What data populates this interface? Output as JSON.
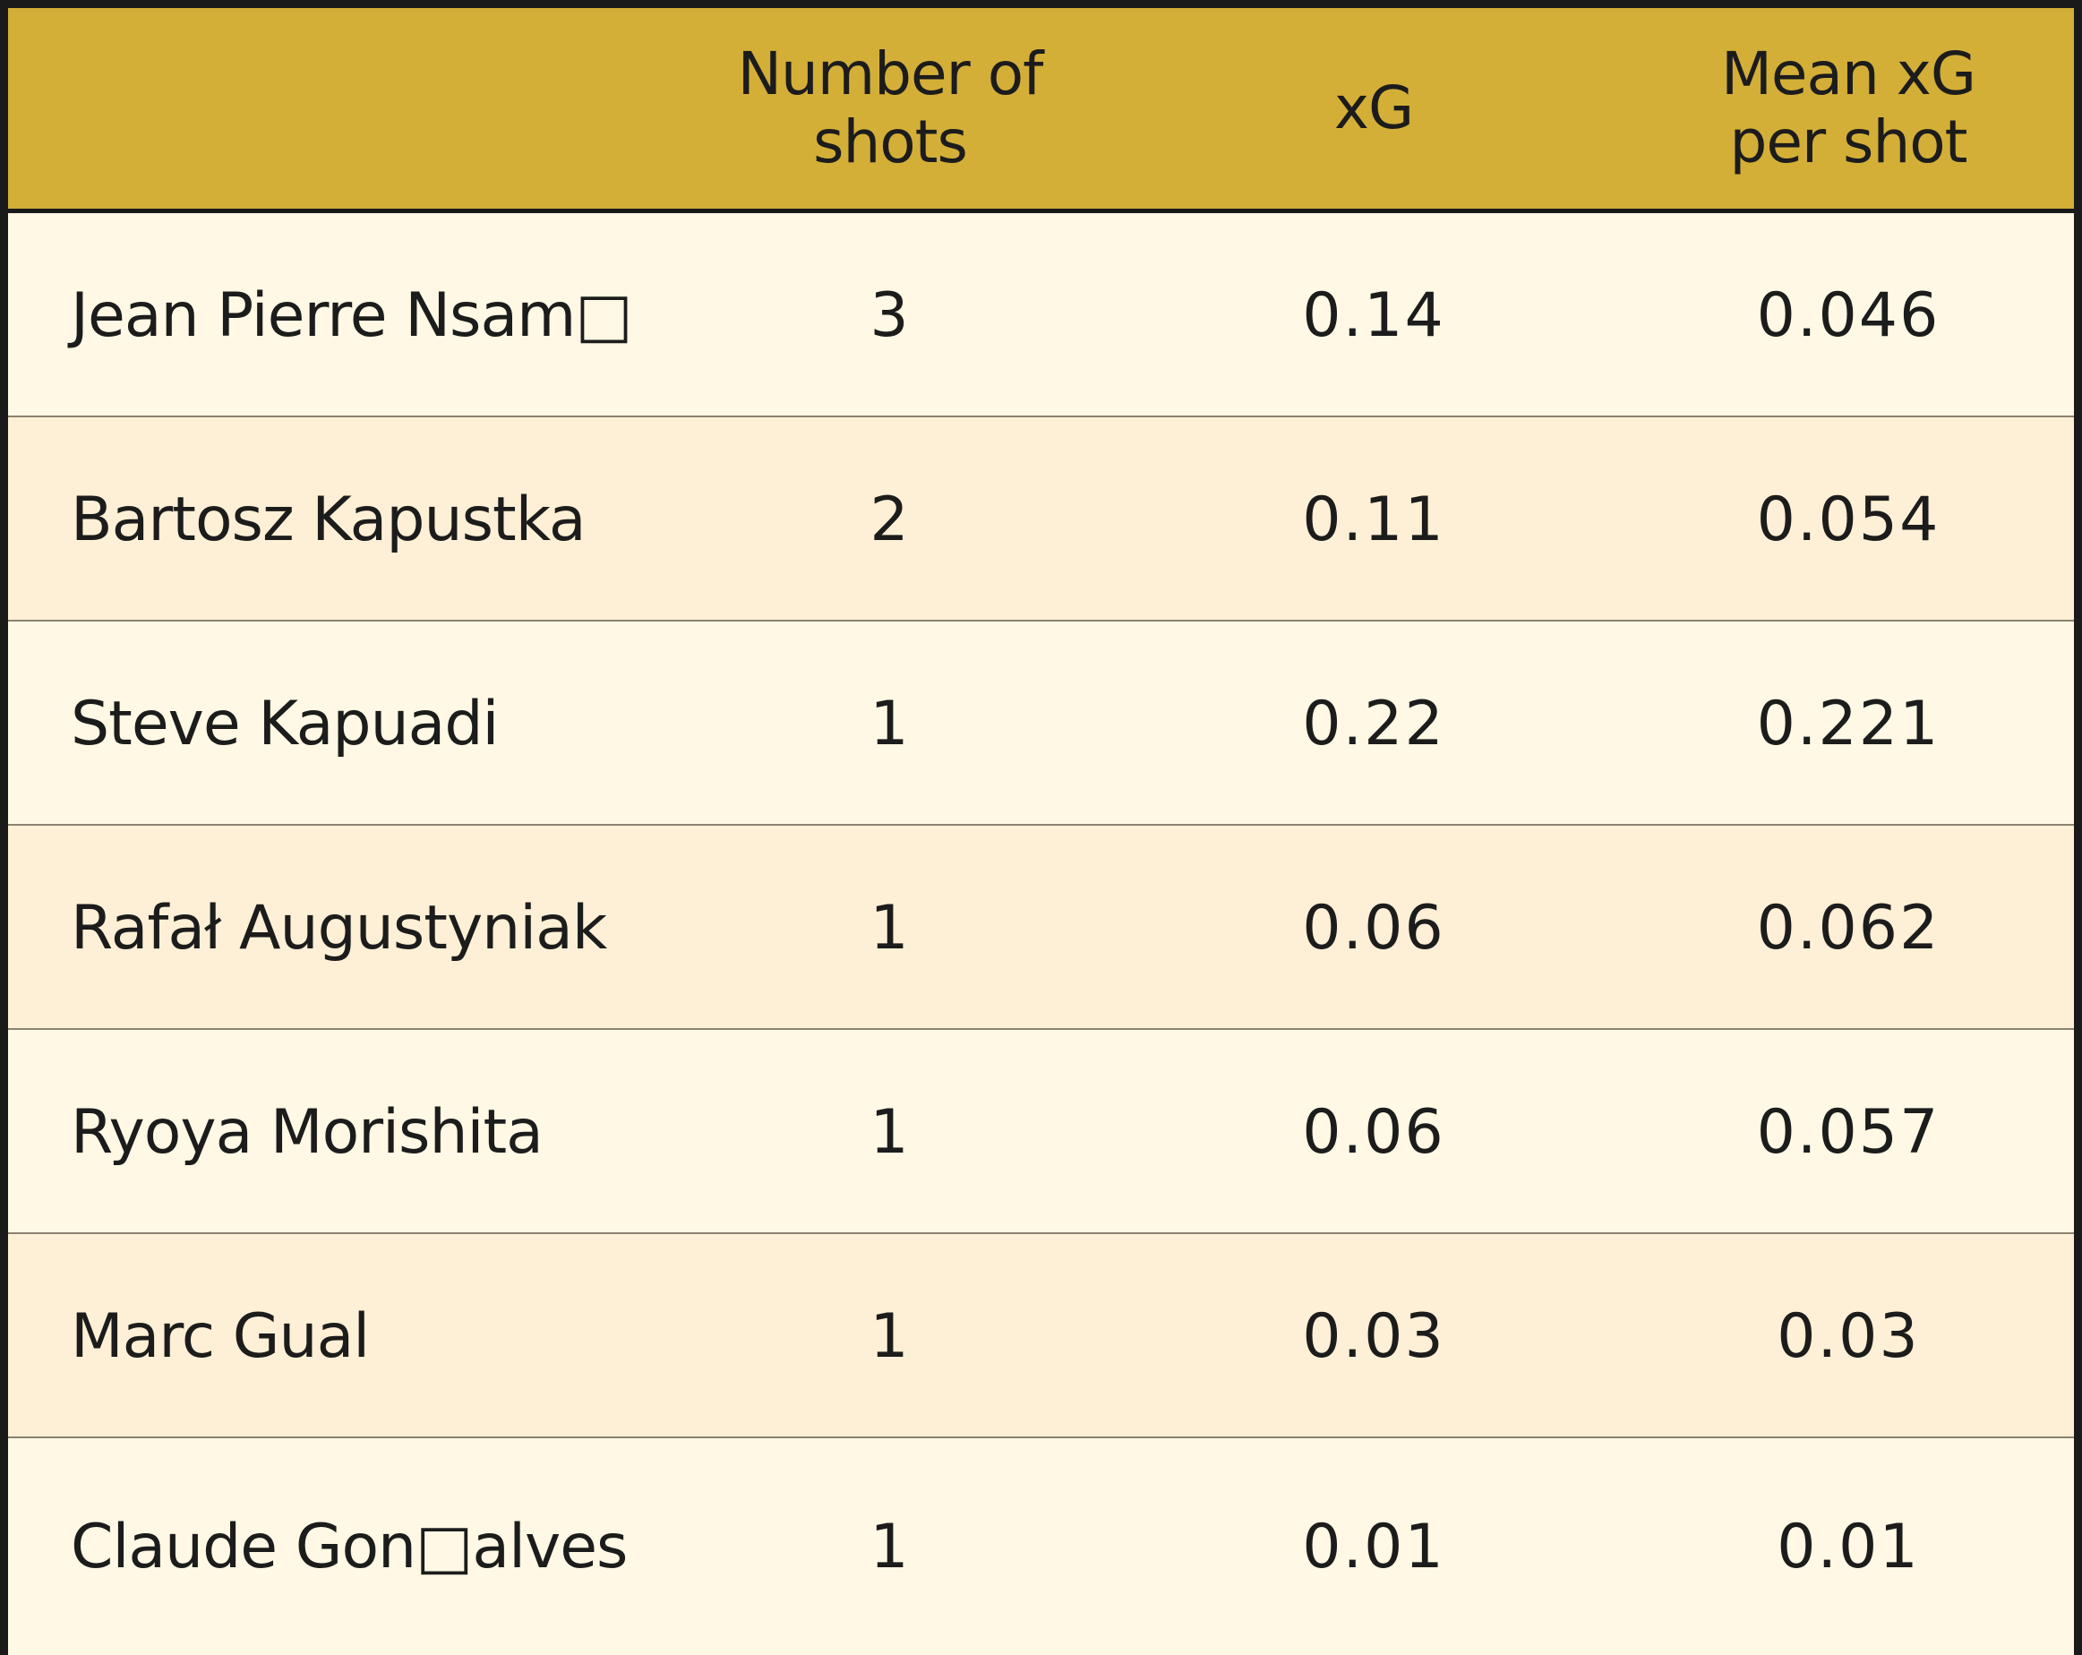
{
  "chart_data": {
    "type": "table",
    "columns": [
      "",
      "Number of\nshots",
      "xG",
      "Mean xG\nper shot"
    ],
    "rows": [
      {
        "name": "Jean Pierre Nsam□",
        "shots": "3",
        "xg": "0.14",
        "mean_xg": "0.046"
      },
      {
        "name": "Bartosz Kapustka",
        "shots": "2",
        "xg": "0.11",
        "mean_xg": "0.054"
      },
      {
        "name": "Steve Kapuadi",
        "shots": "1",
        "xg": "0.22",
        "mean_xg": "0.221"
      },
      {
        "name": "Rafał Augustyniak",
        "shots": "1",
        "xg": "0.06",
        "mean_xg": "0.062"
      },
      {
        "name": "Ryoya Morishita",
        "shots": "1",
        "xg": "0.06",
        "mean_xg": "0.057"
      },
      {
        "name": "Marc Gual",
        "shots": "1",
        "xg": "0.03",
        "mean_xg": "0.03"
      },
      {
        "name": "Claude Gon□alves",
        "shots": "1",
        "xg": "0.01",
        "mean_xg": "0.01"
      }
    ]
  },
  "colors": {
    "header_bg": "#d4af37",
    "row_odd": "#fef8e4",
    "row_even": "#fef0d6",
    "border": "#1a1a1a",
    "text": "#1c1c1c"
  }
}
